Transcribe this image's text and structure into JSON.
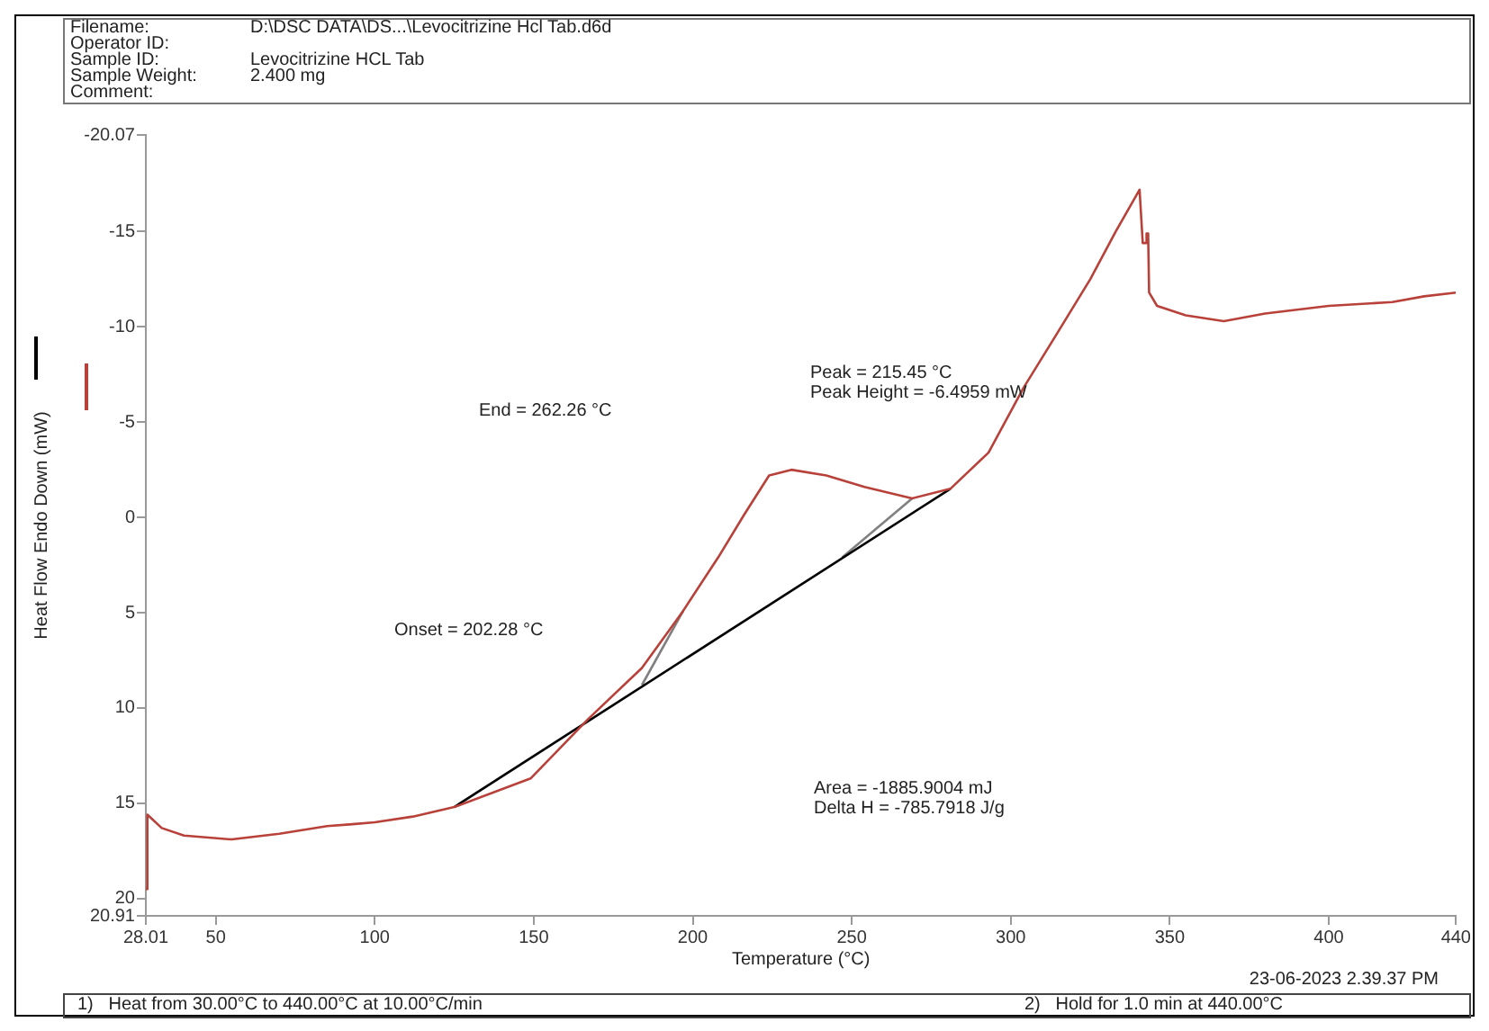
{
  "chart_data": {
    "type": "line",
    "xlabel": "Temperature (°C)",
    "ylabel": "Heat Flow Endo Down (mW)",
    "xlim": [
      28.01,
      440
    ],
    "xticks": [
      28.01,
      50,
      100,
      150,
      200,
      250,
      300,
      350,
      400,
      440
    ],
    "ylim": [
      20.91,
      -20.07
    ],
    "yticks": [
      -20.07,
      -15,
      -10,
      -5,
      0,
      5,
      10,
      15,
      20,
      20.91
    ],
    "grid": false,
    "legend": false,
    "marker": "none",
    "line_style": "solid",
    "series": [
      {
        "color": "#b8413a",
        "x": [
          28.01,
          28.5,
          33,
          40,
          55,
          70,
          85,
          93,
          100,
          112,
          125,
          149,
          167,
          184,
          197,
          208,
          216,
          224,
          231,
          242,
          254,
          269,
          281,
          293,
          304,
          314,
          325,
          333,
          340.5,
          341.5,
          342.5,
          342.7,
          343.2,
          343.5,
          346,
          355,
          367,
          380,
          400,
          420,
          430,
          440
        ],
        "values": [
          19.5,
          15.6,
          16.3,
          16.7,
          16.9,
          16.6,
          16.2,
          16.1,
          16.0,
          15.7,
          15.2,
          13.7,
          10.6,
          7.9,
          4.9,
          2.1,
          -0.1,
          -2.2,
          -2.5,
          -2.2,
          -1.6,
          -1.0,
          -1.5,
          -3.4,
          -6.8,
          -9.5,
          -12.5,
          -15,
          -17.2,
          -14.4,
          -14.4,
          -14.9,
          -14.9,
          -11.8,
          -11.1,
          -10.6,
          -10.3,
          -10.7,
          -11.1,
          -11.3,
          -11.6,
          -11.8
        ]
      },
      {
        "color": "#000000",
        "x": [
          125,
          281
        ],
        "values": [
          15.2,
          -1.5
        ]
      },
      {
        "color": "#808080",
        "x": [
          184,
          197
        ],
        "values": [
          8.8,
          4.9
        ]
      },
      {
        "color": "#808080",
        "x": [
          247,
          269
        ],
        "values": [
          2.1,
          -1.0
        ]
      }
    ],
    "annotations": [
      "Filename:",
      "D:\\DSC DATA\\DS...\\Levocitrizine Hcl Tab.d6d",
      "Operator ID:",
      "Sample ID:",
      "Levocitrizine HCL Tab",
      "Sample Weight:",
      "2.400 mg",
      "Comment:",
      "End = 262.26 °C",
      "Onset = 202.28 °C",
      "Peak = 215.45 °C",
      "Peak Height = -6.4959 mW",
      "Area = -1885.9004 mJ",
      "Delta H = -785.7918 J/g",
      "23-06-2023 2.39.37 PM",
      "1)   Heat from 30.00°C to 440.00°C at 10.00°C/min",
      "2)   Hold for 1.0 min at 440.00°C"
    ]
  }
}
